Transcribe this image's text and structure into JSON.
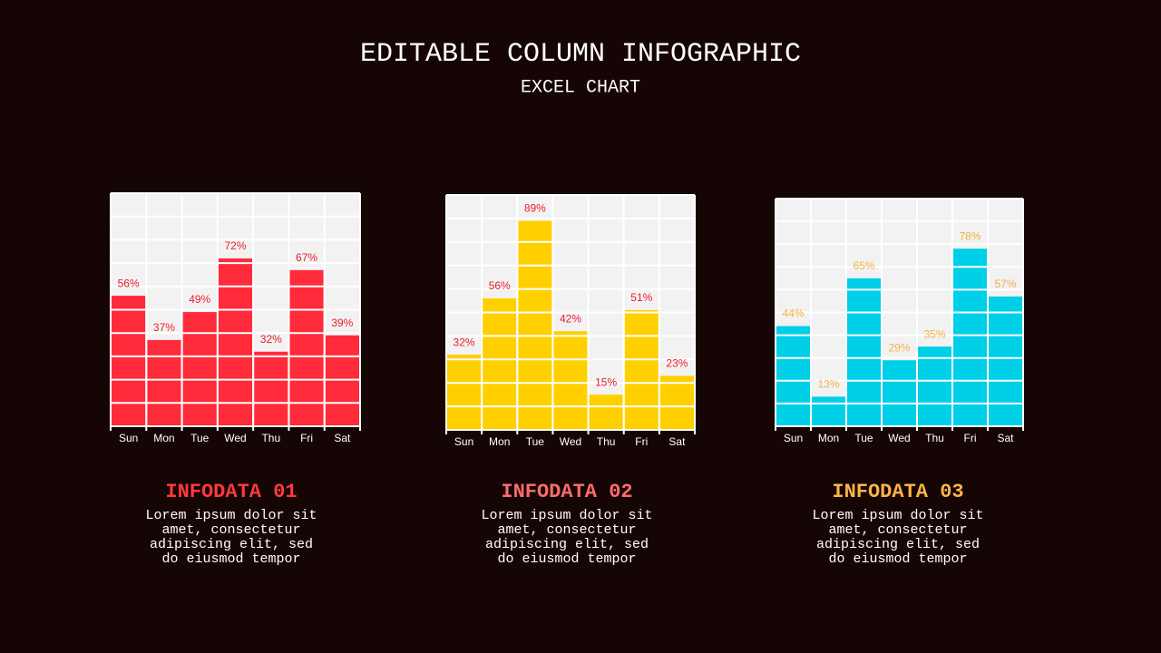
{
  "slide": {
    "title": "EDITABLE COLUMN INFOGRAPHIC",
    "subtitle": "EXCEL CHART"
  },
  "chart_data": [
    {
      "type": "bar",
      "categories": [
        "Sun",
        "Mon",
        "Tue",
        "Wed",
        "Thu",
        "Fri",
        "Sat"
      ],
      "values": [
        56,
        37,
        49,
        72,
        32,
        67,
        39
      ],
      "value_labels": [
        "56%",
        "37%",
        "49%",
        "72%",
        "32%",
        "67%",
        "39%"
      ],
      "color": "#ff2b3b",
      "label_color": "#e8202c",
      "ylim": [
        0,
        100
      ],
      "yticks": [
        0,
        10,
        20,
        30,
        40,
        50,
        60,
        70,
        80,
        90,
        100
      ],
      "grid": true
    },
    {
      "type": "bar",
      "categories": [
        "Sun",
        "Mon",
        "Tue",
        "Wed",
        "Thu",
        "Fri",
        "Sat"
      ],
      "values": [
        32,
        56,
        89,
        42,
        15,
        51,
        23
      ],
      "value_labels": [
        "32%",
        "56%",
        "89%",
        "42%",
        "15%",
        "51%",
        "23%"
      ],
      "color": "#ffd000",
      "label_color": "#e8202c",
      "ylim": [
        0,
        100
      ],
      "yticks": [
        0,
        10,
        20,
        30,
        40,
        50,
        60,
        70,
        80,
        90,
        100
      ],
      "grid": true
    },
    {
      "type": "bar",
      "categories": [
        "Sun",
        "Mon",
        "Tue",
        "Wed",
        "Thu",
        "Fri",
        "Sat"
      ],
      "values": [
        44,
        13,
        65,
        29,
        35,
        78,
        57
      ],
      "value_labels": [
        "44%",
        "13%",
        "65%",
        "29%",
        "35%",
        "78%",
        "57%"
      ],
      "color": "#00cfe8",
      "label_color": "#f5b041",
      "ylim": [
        0,
        100
      ],
      "yticks": [
        0,
        10,
        20,
        30,
        40,
        50,
        60,
        70,
        80,
        90,
        100
      ],
      "grid": true
    }
  ],
  "captions": [
    {
      "title": "INFODATA 01",
      "color": "#ff3a3a",
      "lines": [
        "Lorem ipsum dolor sit",
        "amet, consectetur",
        "adipiscing elit, sed",
        "do eiusmod tempor"
      ]
    },
    {
      "title": "INFODATA 02",
      "color": "#ff6b6b",
      "lines": [
        "Lorem ipsum dolor sit",
        "amet, consectetur",
        "adipiscing elit, sed",
        "do eiusmod tempor"
      ]
    },
    {
      "title": "INFODATA 03",
      "color": "#ffb347",
      "lines": [
        "Lorem ipsum dolor sit",
        "amet, consectetur",
        "adipiscing elit, sed",
        "do eiusmod tempor"
      ]
    }
  ]
}
